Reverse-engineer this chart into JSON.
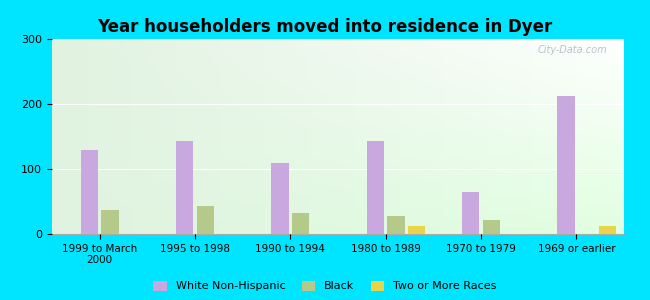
{
  "title": "Year householders moved into residence in Dyer",
  "categories": [
    "1999 to March\n2000",
    "1995 to 1998",
    "1990 to 1994",
    "1980 to 1989",
    "1970 to 1979",
    "1969 or earlier"
  ],
  "series": {
    "White Non-Hispanic": [
      130,
      143,
      110,
      143,
      65,
      212
    ],
    "Black": [
      37,
      43,
      32,
      27,
      22,
      0
    ],
    "Two or More Races": [
      0,
      0,
      0,
      12,
      0,
      12
    ]
  },
  "colors": {
    "White Non-Hispanic": "#c9a8e0",
    "Black": "#b5c98a",
    "Two or More Races": "#e8d44d"
  },
  "ylim": [
    0,
    300
  ],
  "yticks": [
    0,
    100,
    200,
    300
  ],
  "background_color": "#00e5ff",
  "watermark": "City-Data.com",
  "bar_width": 0.18
}
